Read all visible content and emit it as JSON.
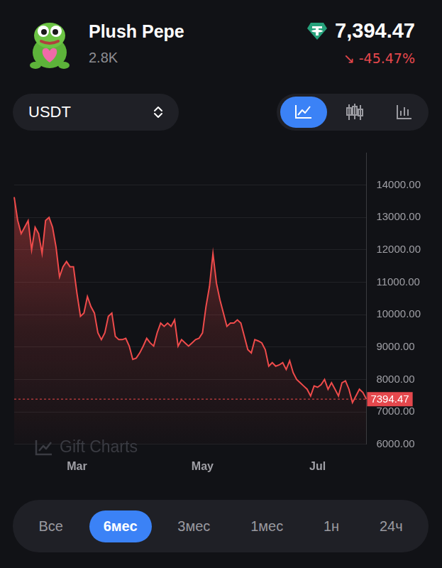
{
  "header": {
    "title": "Plush Pepe",
    "subtitle": "2.8K",
    "price": "7,394.47",
    "change": "↘ -45.47%"
  },
  "currency_select": "USDT",
  "watermark": "Gift Charts",
  "periods": [
    {
      "label": "Все",
      "active": false
    },
    {
      "label": "6мес",
      "active": true
    },
    {
      "label": "3мес",
      "active": false
    },
    {
      "label": "1мес",
      "active": false
    },
    {
      "label": "1н",
      "active": false
    },
    {
      "label": "24ч",
      "active": false
    }
  ],
  "chart_data": {
    "type": "line",
    "color": "#ef4b4b",
    "grid": true,
    "categories": [
      null,
      null,
      null,
      null,
      null,
      null,
      null,
      null,
      null,
      null,
      null,
      null,
      null,
      null,
      null,
      null,
      null,
      null,
      "Mar",
      null,
      null,
      null,
      null,
      null,
      null,
      null,
      null,
      null,
      null,
      null,
      null,
      null,
      null,
      null,
      null,
      null,
      null,
      null,
      null,
      null,
      null,
      null,
      null,
      null,
      null,
      null,
      null,
      null,
      null,
      null,
      null,
      null,
      null,
      null,
      "May",
      null,
      null,
      null,
      null,
      null,
      null,
      null,
      null,
      null,
      null,
      null,
      null,
      null,
      null,
      null,
      null,
      null,
      null,
      null,
      null,
      null,
      null,
      null,
      null,
      null,
      null,
      null,
      null,
      null,
      null,
      null,
      null,
      "Jul",
      null,
      null,
      null,
      null,
      null,
      null,
      null,
      null,
      null,
      null,
      null,
      null,
      null,
      null
    ],
    "values": [
      13630,
      12910,
      12500,
      12700,
      12900,
      12000,
      12700,
      12500,
      11890,
      12910,
      13000,
      12700,
      12090,
      11170,
      11480,
      11640,
      11480,
      11480,
      10660,
      9950,
      10050,
      10560,
      10250,
      10050,
      9440,
      9230,
      9440,
      9950,
      10050,
      9330,
      9230,
      9230,
      9270,
      9030,
      8620,
      8660,
      8820,
      9030,
      9270,
      9130,
      9030,
      9440,
      9740,
      9640,
      9740,
      9640,
      9840,
      9030,
      9230,
      9130,
      9030,
      9130,
      9230,
      9270,
      9440,
      10250,
      10870,
      11890,
      10970,
      10460,
      10050,
      9640,
      9740,
      9740,
      9840,
      9740,
      9330,
      8920,
      8820,
      9230,
      9190,
      9130,
      8920,
      8410,
      8520,
      8410,
      8450,
      8520,
      8310,
      8580,
      8210,
      8000,
      7900,
      7800,
      7700,
      7490,
      7800,
      7760,
      7840,
      8000,
      7700,
      7900,
      7700,
      7490,
      7900,
      7960,
      7700,
      7290,
      7490,
      7700,
      7600,
      7394.47
    ],
    "ylim": [
      6000,
      15000
    ],
    "yticks": [
      {
        "value": 6000,
        "label": "6000.00"
      },
      {
        "value": 7000,
        "label": "7000.00"
      },
      {
        "value": 8000,
        "label": "8000.00"
      },
      {
        "value": 9000,
        "label": "9000.00"
      },
      {
        "value": 10000,
        "label": "10000.00"
      },
      {
        "value": 11000,
        "label": "11000.00"
      },
      {
        "value": 12000,
        "label": "12000.00"
      },
      {
        "value": 13000,
        "label": "13000.00"
      },
      {
        "value": 14000,
        "label": "14000.00"
      }
    ]
  }
}
